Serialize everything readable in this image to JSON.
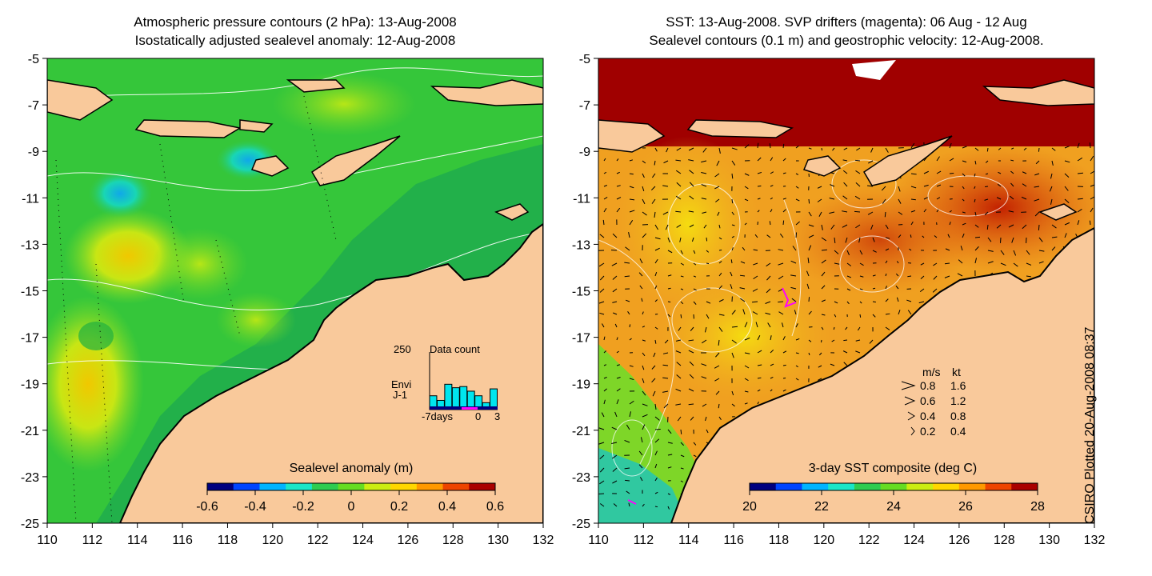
{
  "left_panel": {
    "title_line1": "Atmospheric pressure contours (2 hPa): 13-Aug-2008",
    "title_line2": "Isostatically adjusted sealevel anomaly: 12-Aug-2008",
    "colorbar": {
      "label": "Sealevel anomaly (m)",
      "range": [
        -0.6,
        0.6
      ],
      "ticks": [
        "-0.6",
        "-0.4",
        "-0.2",
        "0",
        "0.2",
        "0.4",
        "0.6"
      ],
      "colors": [
        "#00007f",
        "#0044ff",
        "#00b4ff",
        "#19e6c8",
        "#2ecc50",
        "#66dd22",
        "#ccee11",
        "#ffd700",
        "#ff9900",
        "#ee4400",
        "#aa0000"
      ]
    },
    "inset": {
      "title": "Data count",
      "ymax_label": "250",
      "xlabel": "-7days",
      "tick0": "0",
      "tick3": "3",
      "legend": [
        "Envi",
        "J-1"
      ],
      "legend_colors": [
        "#00ffff",
        "#0000ff"
      ],
      "bar_values": [
        60,
        40,
        110,
        95,
        100,
        80,
        60,
        30,
        90
      ],
      "bar_color": "#00e5ee"
    }
  },
  "right_panel": {
    "title_line1": "SST: 13-Aug-2008. SVP drifters (magenta): 06 Aug - 12 Aug",
    "title_line2": "Sealevel contours (0.1 m) and geostrophic velocity: 12-Aug-2008.",
    "colorbar": {
      "label": "3-day SST composite (deg C)",
      "range": [
        20,
        28
      ],
      "ticks": [
        "20",
        "22",
        "24",
        "26",
        "28"
      ],
      "colors": [
        "#00007f",
        "#0044ff",
        "#00b4ff",
        "#19e6c8",
        "#2ecc50",
        "#66dd22",
        "#ccee11",
        "#ffd700",
        "#ff9900",
        "#ee4400",
        "#aa0000"
      ]
    },
    "velocity_key": {
      "header_ms": "m/s",
      "header_kt": "kt",
      "rows": [
        {
          "ms": "0.8",
          "kt": "1.6"
        },
        {
          "ms": "0.6",
          "kt": "1.2"
        },
        {
          "ms": "0.4",
          "kt": "0.8"
        },
        {
          "ms": "0.2",
          "kt": "0.4"
        }
      ]
    }
  },
  "axes": {
    "x_ticks": [
      "110",
      "112",
      "114",
      "116",
      "118",
      "120",
      "122",
      "124",
      "126",
      "128",
      "130",
      "132"
    ],
    "y_ticks": [
      "-5",
      "-7",
      "-9",
      "-11",
      "-13",
      "-15",
      "-17",
      "-19",
      "-21",
      "-23",
      "-25"
    ],
    "lon_range": [
      110,
      132
    ],
    "lat_range": [
      -25,
      -5
    ]
  },
  "credit": "CSIRO Plotted 20-Aug-2008 08:37",
  "colors": {
    "land": "#f9c99b",
    "left_sea_base": "#35c63a",
    "right_sea_base": "#f0a020",
    "indonesia_sst": "#a00000"
  }
}
